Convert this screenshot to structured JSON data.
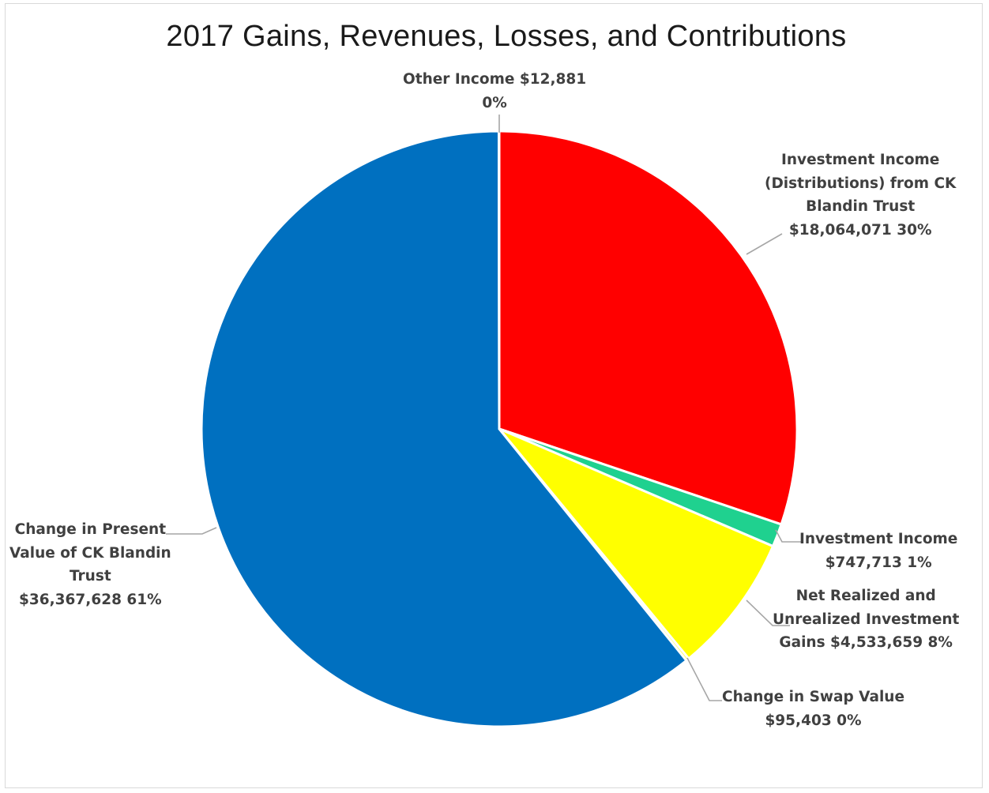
{
  "chart_data": {
    "type": "pie",
    "title": "2017 Gains, Revenues, Losses, and Contributions",
    "start_angle_deg": 0,
    "direction": "clockwise",
    "slices": [
      {
        "category": "Investment Income (Distributions) from CK Blandin Trust",
        "value": 18064071,
        "value_label": "$18,064,071",
        "percent_label": "30%",
        "color": "#ff0000",
        "label_lines": [
          "Investment Income",
          "(Distributions) from CK",
          "Blandin Trust",
          "$18,064,071 30%"
        ]
      },
      {
        "category": "Investment Income",
        "value": 747713,
        "value_label": "$747,713",
        "percent_label": "1%",
        "color": "#1fd18f",
        "label_lines": [
          "Investment Income",
          "$747,713 1%"
        ]
      },
      {
        "category": "Net Realized and Unrealized Investment Gains",
        "value": 4533659,
        "value_label": "$4,533,659",
        "percent_label": "8%",
        "color": "#ffff00",
        "label_lines": [
          "Net Realized and",
          "Unrealized Investment",
          "Gains $4,533,659 8%"
        ]
      },
      {
        "category": "Change in Swap Value",
        "value": 95403,
        "value_label": "$95,403",
        "percent_label": "0%",
        "color": "#ffff00",
        "label_lines": [
          "Change in Swap Value",
          "$95,403 0%"
        ]
      },
      {
        "category": "Change in Present Value of CK Blandin Trust",
        "value": 36367628,
        "value_label": "$36,367,628",
        "percent_label": "61%",
        "color": "#0070c0",
        "label_lines": [
          "Change in Present",
          "Value of CK Blandin",
          "Trust",
          "$36,367,628 61%"
        ]
      },
      {
        "category": "Other Income",
        "value": 12881,
        "value_label": "$12,881",
        "percent_label": "0%",
        "color": "#a5a5a5",
        "label_lines": [
          "Other Income $12,881",
          "0%"
        ]
      }
    ],
    "slice_border_color": "#ffffff",
    "leader_line_color": "#a6a6a6"
  }
}
